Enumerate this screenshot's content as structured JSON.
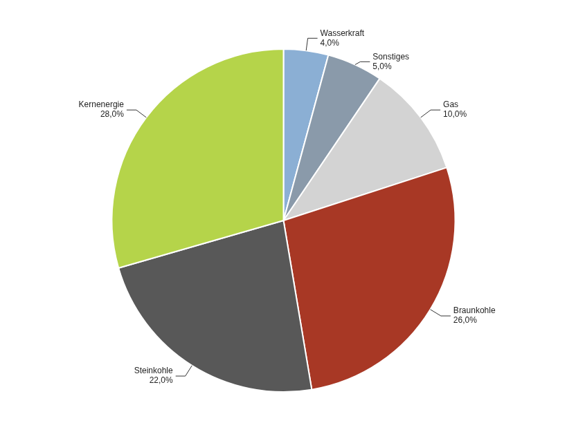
{
  "chart_data": {
    "type": "pie",
    "categories": [
      "Wasserkraft",
      "Sonstiges",
      "Gas",
      "Braunkohle",
      "Steinkohle",
      "Kernenergie"
    ],
    "values": [
      4.0,
      5.0,
      10.0,
      26.0,
      22.0,
      28.0
    ],
    "value_labels": [
      "4,0%",
      "5,0%",
      "10,0%",
      "26,0%",
      "22,0%",
      "28,0%"
    ],
    "colors": [
      "#8bafd4",
      "#8a9aaa",
      "#d3d3d3",
      "#a83825",
      "#585858",
      "#b5d44a"
    ],
    "data_labels": true
  }
}
